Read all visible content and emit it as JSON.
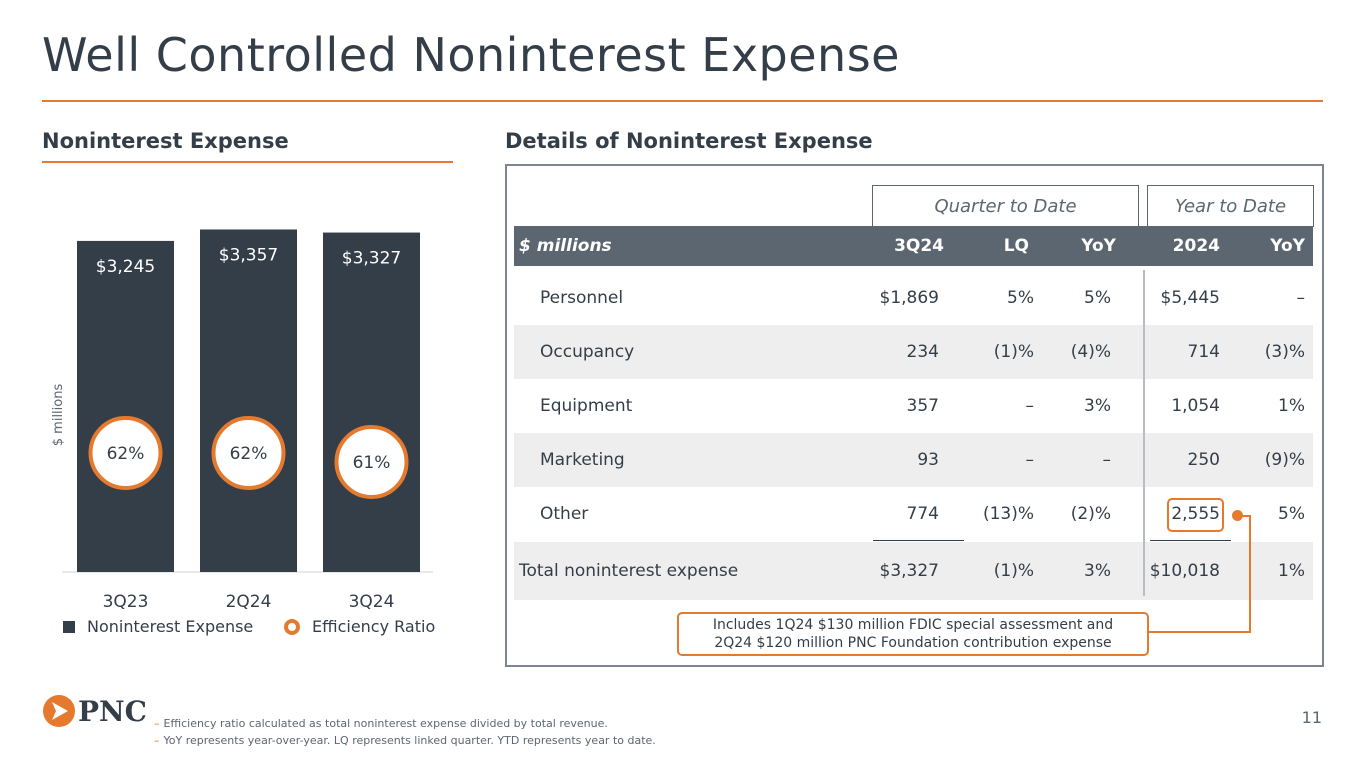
{
  "title": "Well Controlled Noninterest Expense",
  "left_heading": "Noninterest Expense",
  "right_heading": "Details of Noninterest Expense",
  "colors": {
    "accent": "#e57a2f",
    "bar": "#333e48",
    "header": "#5c6670"
  },
  "chart_data": {
    "type": "bar",
    "categories": [
      "3Q23",
      "2Q24",
      "3Q24"
    ],
    "series": [
      {
        "name": "Noninterest Expense",
        "values": [
          3245,
          3357,
          3327
        ],
        "labels": [
          "$3,245",
          "$3,357",
          "$3,327"
        ]
      },
      {
        "name": "Efficiency Ratio",
        "values": [
          62,
          62,
          61
        ],
        "labels": [
          "62%",
          "62%",
          "61%"
        ]
      }
    ],
    "ylabel": "$ millions",
    "ylim": [
      0,
      3450
    ],
    "legend": [
      "Noninterest Expense",
      "Efficiency Ratio"
    ]
  },
  "table": {
    "group_headers": [
      "Quarter to Date",
      "Year to Date"
    ],
    "columns": [
      "$ millions",
      "3Q24",
      "LQ",
      "YoY",
      "2024",
      "YoY"
    ],
    "rows": [
      {
        "label": "Personnel",
        "q3": "$1,869",
        "lq": "5%",
        "yoy": "5%",
        "ytd": "$5,445",
        "ytd_yoy": "–"
      },
      {
        "label": "Occupancy",
        "q3": "234",
        "lq": "(1)%",
        "yoy": "(4)%",
        "ytd": "714",
        "ytd_yoy": "(3)%"
      },
      {
        "label": "Equipment",
        "q3": "357",
        "lq": "–",
        "yoy": "3%",
        "ytd": "1,054",
        "ytd_yoy": "1%"
      },
      {
        "label": "Marketing",
        "q3": "93",
        "lq": "–",
        "yoy": "–",
        "ytd": "250",
        "ytd_yoy": "(9)%"
      },
      {
        "label": "Other",
        "q3": "774",
        "lq": "(13)%",
        "yoy": "(2)%",
        "ytd": "2,555",
        "ytd_yoy": "5%"
      }
    ],
    "total": {
      "label": "Total noninterest expense",
      "q3": "$3,327",
      "lq": "(1)%",
      "yoy": "3%",
      "ytd": "$10,018",
      "ytd_yoy": "1%"
    }
  },
  "callout": {
    "line1": "Includes 1Q24 $130 million FDIC special assessment and",
    "line2": "2Q24 $120 million PNC Foundation contribution expense"
  },
  "footnotes": [
    "Efficiency ratio calculated as total noninterest expense divided by total revenue.",
    "YoY represents year-over-year. LQ represents linked quarter. YTD represents year to date."
  ],
  "footnote_marker": "–",
  "logo_text": "PNC",
  "page_number": "11"
}
